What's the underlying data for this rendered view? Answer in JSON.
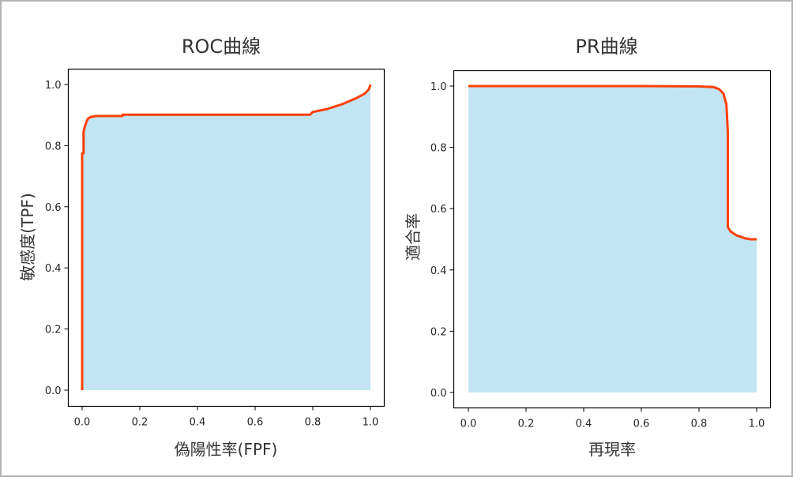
{
  "figure": {
    "background": "#ffffff",
    "border_color": "#b4b4b4",
    "line_color": "#ff4000",
    "fill_color": "#c2e4f3"
  },
  "chart_data": [
    {
      "type": "area",
      "title": "ROC曲線",
      "xlabel": "偽陽性率(FPF)",
      "ylabel": "敏感度(TPF)",
      "xlim": [
        -0.05,
        1.05
      ],
      "ylim": [
        -0.05,
        1.05
      ],
      "xticks": [
        "0.0",
        "0.2",
        "0.4",
        "0.6",
        "0.8",
        "1.0"
      ],
      "yticks": [
        "0.0",
        "0.2",
        "0.4",
        "0.6",
        "0.8",
        "1.0"
      ],
      "grid": false,
      "legend": null,
      "series": [
        {
          "name": "ROC",
          "x": [
            0.0,
            0.0,
            0.005,
            0.005,
            0.01,
            0.015,
            0.02,
            0.03,
            0.05,
            0.1,
            0.14,
            0.14,
            0.3,
            0.5,
            0.7,
            0.79,
            0.8,
            0.85,
            0.9,
            0.95,
            0.98,
            0.995,
            1.0
          ],
          "y": [
            0.0,
            0.775,
            0.775,
            0.845,
            0.865,
            0.878,
            0.888,
            0.894,
            0.897,
            0.897,
            0.897,
            0.901,
            0.901,
            0.901,
            0.901,
            0.901,
            0.91,
            0.92,
            0.935,
            0.955,
            0.97,
            0.985,
            1.0
          ]
        }
      ]
    },
    {
      "type": "area",
      "title": "PR曲線",
      "xlabel": "再現率",
      "ylabel": "適合率",
      "xlim": [
        -0.05,
        1.05
      ],
      "ylim": [
        -0.05,
        1.05
      ],
      "xticks": [
        "0.0",
        "0.2",
        "0.4",
        "0.6",
        "0.8",
        "1.0"
      ],
      "yticks": [
        "0.0",
        "0.2",
        "0.4",
        "0.6",
        "0.8",
        "1.0"
      ],
      "grid": false,
      "legend": null,
      "series": [
        {
          "name": "PR",
          "x": [
            0.0,
            0.2,
            0.4,
            0.6,
            0.8,
            0.85,
            0.87,
            0.885,
            0.895,
            0.9,
            0.9,
            0.9,
            0.91,
            0.93,
            0.96,
            0.98,
            1.0
          ],
          "y": [
            1.0,
            1.0,
            1.0,
            1.0,
            0.999,
            0.997,
            0.99,
            0.975,
            0.94,
            0.85,
            0.6,
            0.54,
            0.525,
            0.513,
            0.503,
            0.5,
            0.5
          ]
        }
      ]
    }
  ]
}
